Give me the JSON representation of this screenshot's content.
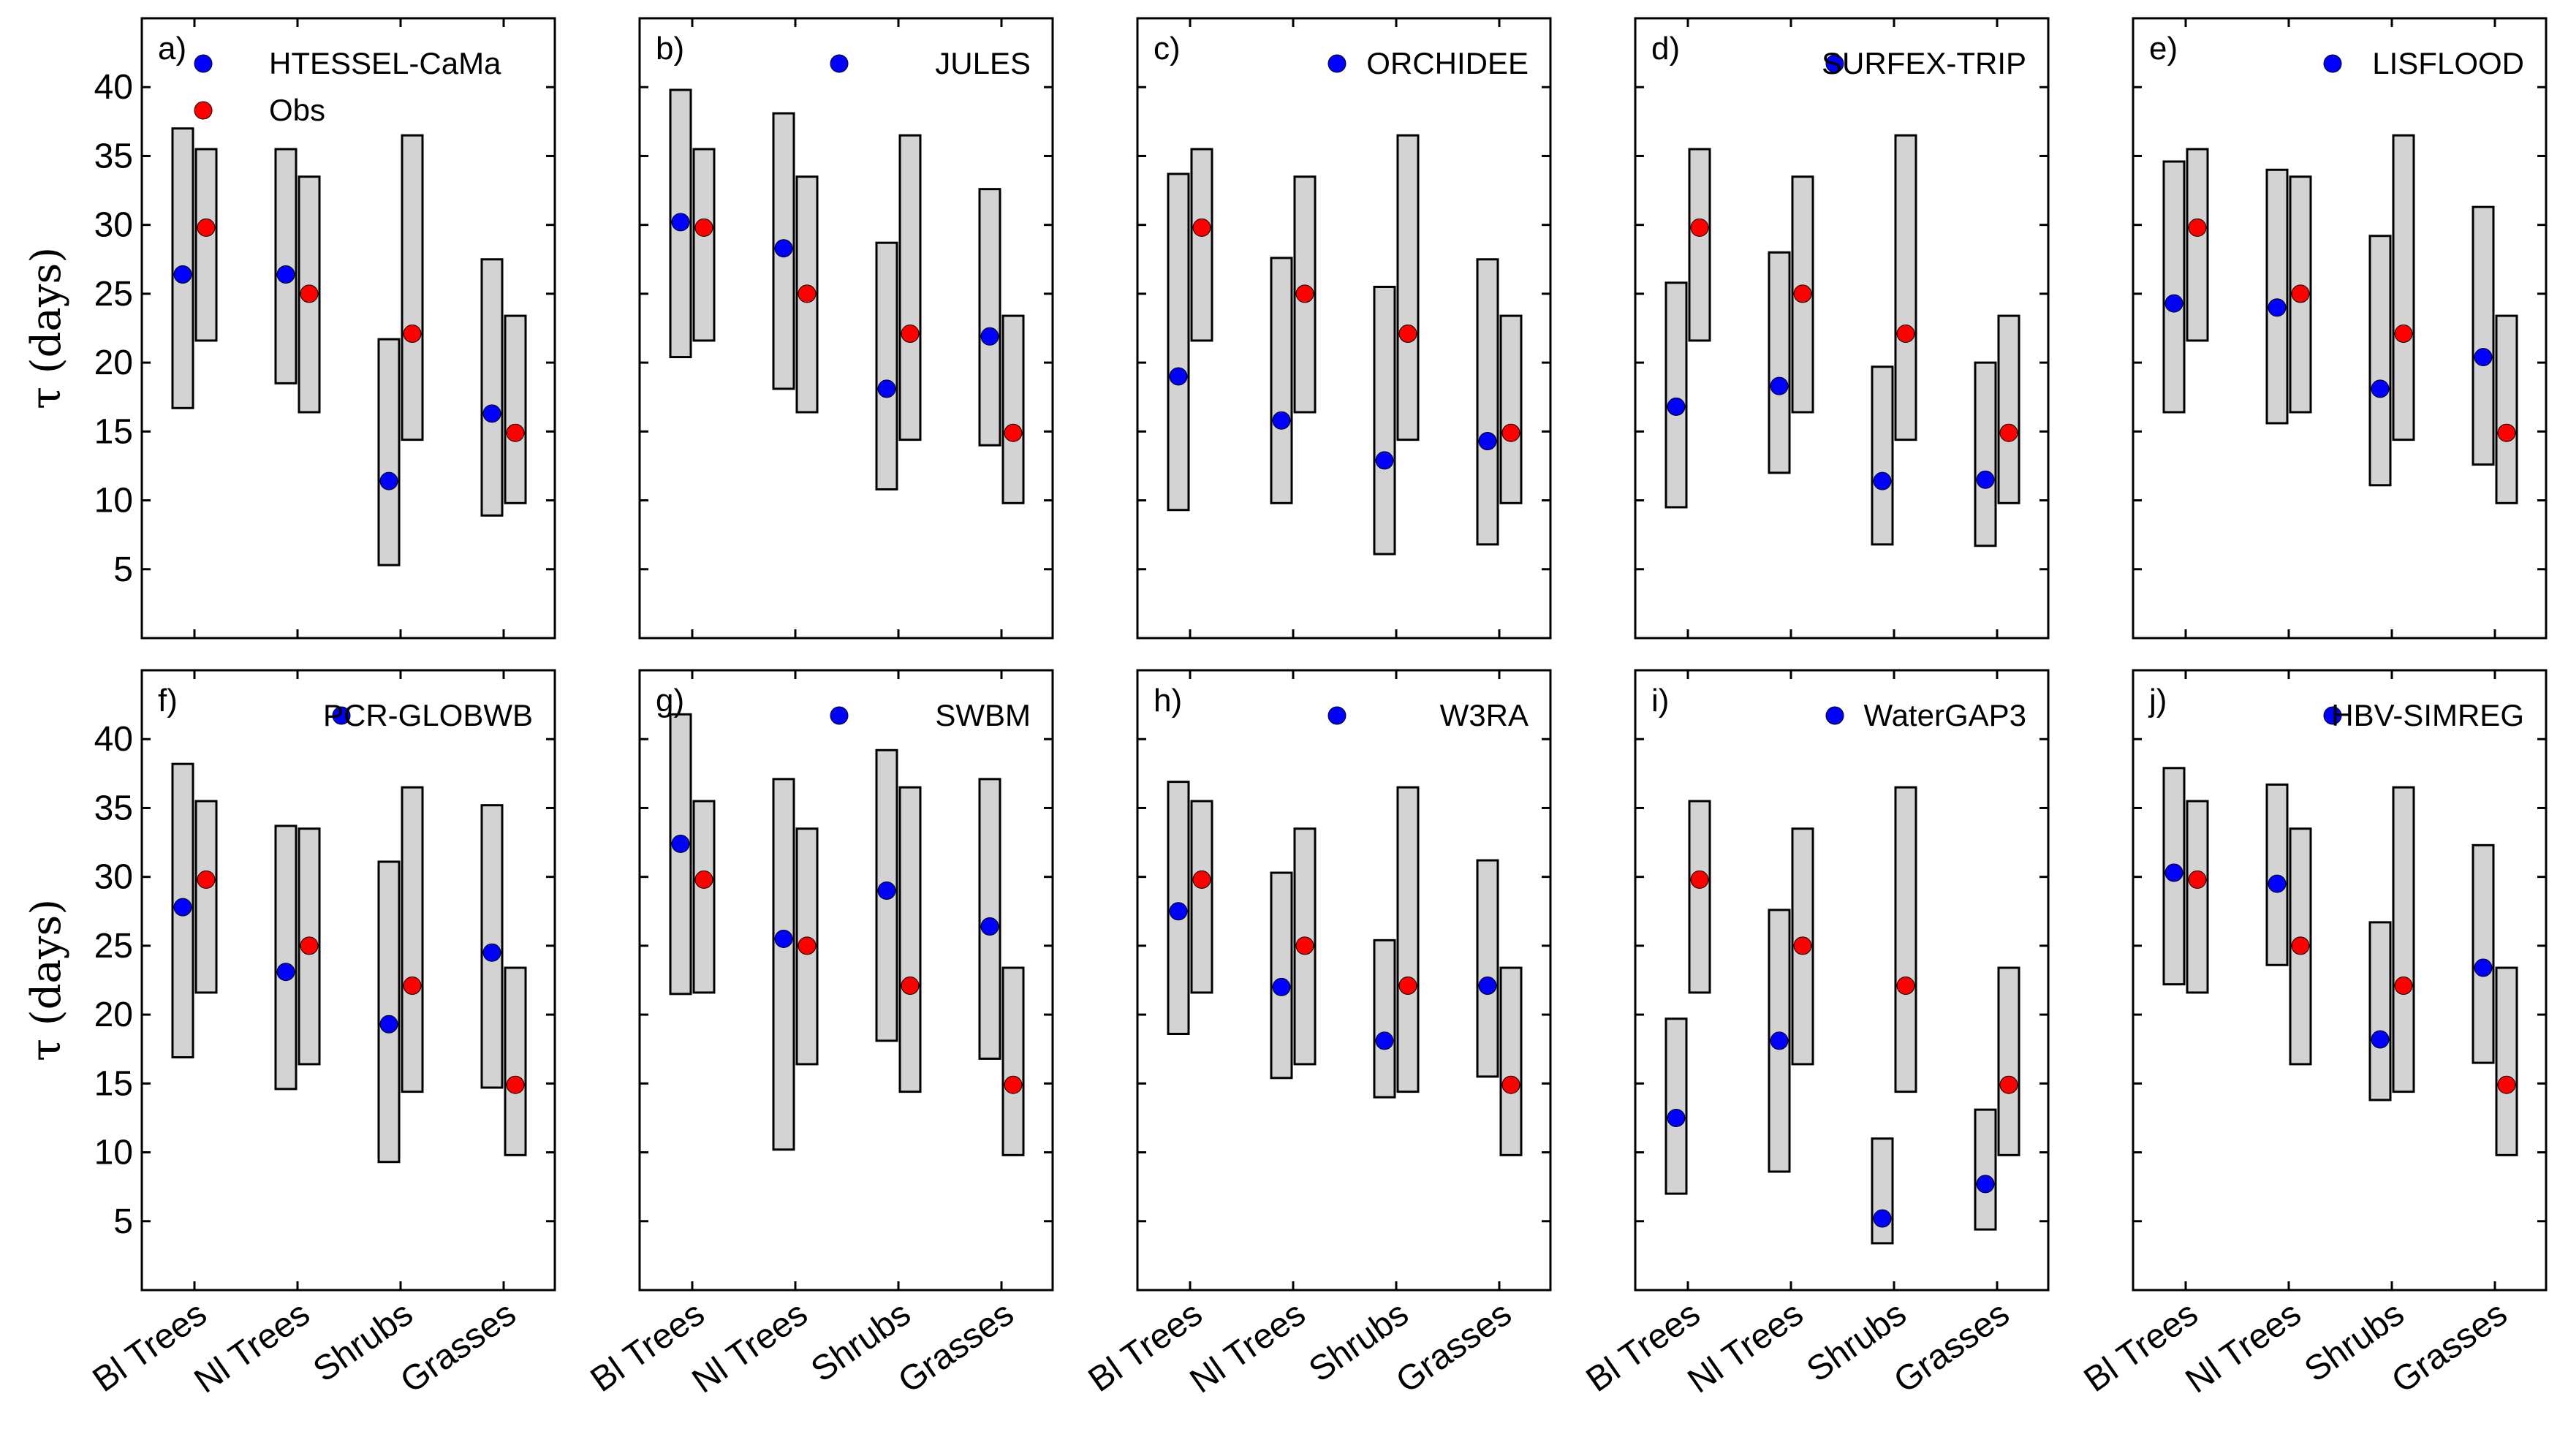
{
  "chart_data": {
    "type": "range-dot",
    "ylabel": "τ (days)",
    "ylim": [
      0,
      45
    ],
    "yticks": [
      5,
      10,
      15,
      20,
      25,
      30,
      35,
      40
    ],
    "categories": [
      "Bl Trees",
      "Nl Trees",
      "Shrubs",
      "Grasses"
    ],
    "colors": {
      "model": "#0000ff",
      "obs": "#ff0000",
      "bar": "#d3d3d3"
    },
    "obs": {
      "name": "Obs",
      "mean": [
        29.8,
        25.0,
        22.1,
        14.9
      ],
      "range": [
        [
          21.6,
          35.5
        ],
        [
          16.4,
          33.5
        ],
        [
          14.4,
          36.5
        ],
        [
          9.8,
          23.4
        ]
      ]
    },
    "panels": [
      {
        "letter": "a)",
        "model": "HTESSEL-CaMa",
        "mean": [
          26.4,
          26.4,
          11.4,
          16.3
        ],
        "range": [
          [
            16.7,
            37.0
          ],
          [
            18.5,
            35.5
          ],
          [
            5.3,
            21.7
          ],
          [
            8.9,
            27.5
          ]
        ]
      },
      {
        "letter": "b)",
        "model": "JULES",
        "mean": [
          30.2,
          28.3,
          18.1,
          21.9
        ],
        "range": [
          [
            20.4,
            39.8
          ],
          [
            18.1,
            38.1
          ],
          [
            10.8,
            28.7
          ],
          [
            14.0,
            32.6
          ]
        ]
      },
      {
        "letter": "c)",
        "model": "ORCHIDEE",
        "mean": [
          19.0,
          15.8,
          12.9,
          14.3
        ],
        "range": [
          [
            9.3,
            33.7
          ],
          [
            9.8,
            27.6
          ],
          [
            6.1,
            25.5
          ],
          [
            6.8,
            27.5
          ]
        ]
      },
      {
        "letter": "d)",
        "model": "SURFEX-TRIP",
        "mean": [
          16.8,
          18.3,
          11.4,
          11.5
        ],
        "range": [
          [
            9.5,
            25.8
          ],
          [
            12.0,
            28.0
          ],
          [
            6.8,
            19.7
          ],
          [
            6.7,
            20.0
          ]
        ]
      },
      {
        "letter": "e)",
        "model": "LISFLOOD",
        "mean": [
          24.3,
          24.0,
          18.1,
          20.4
        ],
        "range": [
          [
            16.4,
            34.6
          ],
          [
            15.6,
            34.0
          ],
          [
            11.1,
            29.2
          ],
          [
            12.6,
            31.3
          ]
        ]
      },
      {
        "letter": "f)",
        "model": "PCR-GLOBWB",
        "mean": [
          27.8,
          23.1,
          19.3,
          24.5
        ],
        "range": [
          [
            16.9,
            38.2
          ],
          [
            14.6,
            33.7
          ],
          [
            9.3,
            31.1
          ],
          [
            14.7,
            35.2
          ]
        ]
      },
      {
        "letter": "g)",
        "model": "SWBM",
        "mean": [
          32.4,
          25.5,
          29.0,
          26.4
        ],
        "range": [
          [
            21.5,
            41.8
          ],
          [
            10.2,
            37.1
          ],
          [
            18.1,
            39.2
          ],
          [
            16.8,
            37.1
          ]
        ]
      },
      {
        "letter": "h)",
        "model": "W3RA",
        "mean": [
          27.5,
          22.0,
          18.1,
          22.1
        ],
        "range": [
          [
            18.6,
            36.9
          ],
          [
            15.4,
            30.3
          ],
          [
            14.0,
            25.4
          ],
          [
            15.5,
            31.2
          ]
        ]
      },
      {
        "letter": "i)",
        "model": "WaterGAP3",
        "mean": [
          12.5,
          18.1,
          5.2,
          7.7
        ],
        "range": [
          [
            7.0,
            19.7
          ],
          [
            8.6,
            27.6
          ],
          [
            3.4,
            11.0
          ],
          [
            4.4,
            13.1
          ]
        ]
      },
      {
        "letter": "j)",
        "model": "HBV-SIMREG",
        "mean": [
          30.3,
          29.5,
          18.2,
          23.4
        ],
        "range": [
          [
            22.2,
            37.9
          ],
          [
            23.6,
            36.7
          ],
          [
            13.8,
            26.7
          ],
          [
            16.5,
            32.3
          ]
        ]
      }
    ]
  }
}
